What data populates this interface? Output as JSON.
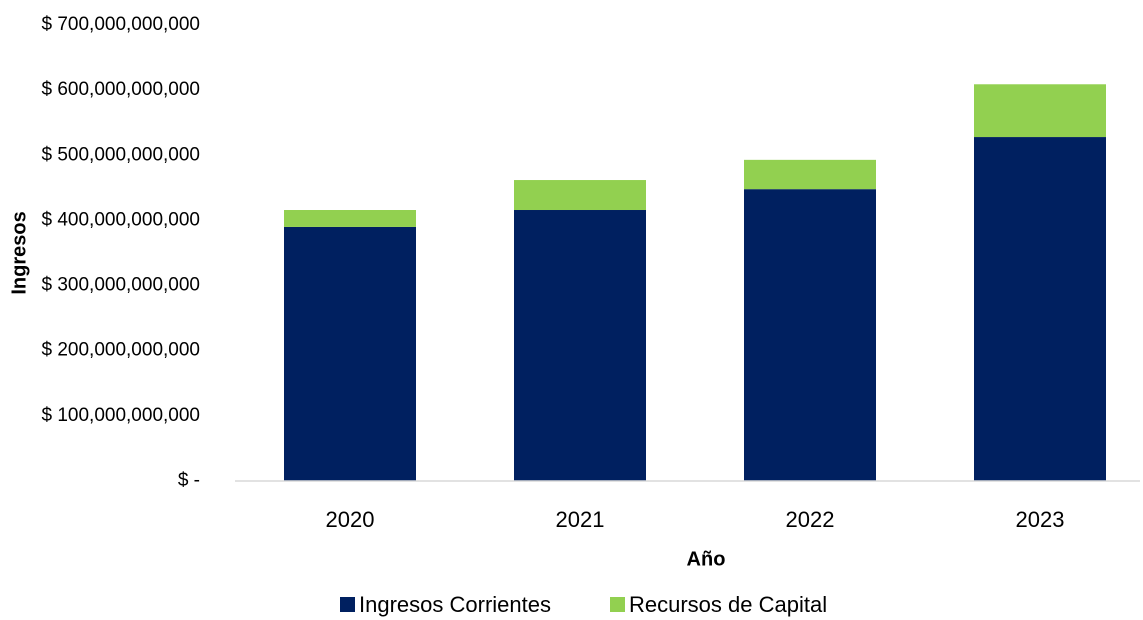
{
  "chart_data": {
    "type": "stacked_bar",
    "x_label": "Año",
    "y_label": "Ingresos",
    "categories": [
      "2020",
      "2021",
      "2022",
      "2023"
    ],
    "series": [
      {
        "name": "Ingresos Corrientes",
        "color": "#002060",
        "values": [
          390000000000,
          416000000000,
          448000000000,
          528000000000
        ]
      },
      {
        "name": "Recursos de Capital",
        "color": "#92d050",
        "values": [
          26000000000,
          46000000000,
          45000000000,
          81000000000
        ]
      }
    ],
    "ylim": [
      0,
      700000000000
    ],
    "yticks": [
      {
        "value": 0,
        "label": "$ -"
      },
      {
        "value": 100000000000,
        "label": "$ 100,000,000,000"
      },
      {
        "value": 200000000000,
        "label": "$ 200,000,000,000"
      },
      {
        "value": 300000000000,
        "label": "$ 300,000,000,000"
      },
      {
        "value": 400000000000,
        "label": "$ 400,000,000,000"
      },
      {
        "value": 500000000000,
        "label": "$ 500,000,000,000"
      },
      {
        "value": 600000000000,
        "label": "$ 600,000,000,000"
      },
      {
        "value": 700000000000,
        "label": "$ 700,000,000,000"
      }
    ],
    "grid": false,
    "legend": "bottom"
  }
}
